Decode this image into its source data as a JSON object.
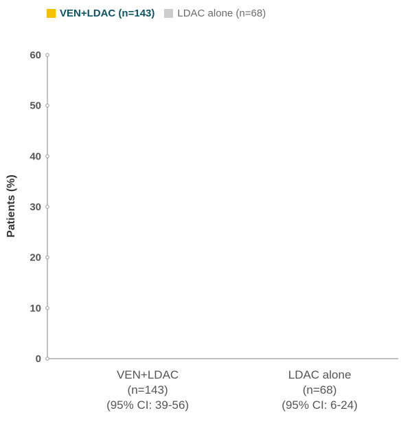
{
  "legend": [
    {
      "name": "VEN+LDAC (n=143)",
      "color": "#f5c000"
    },
    {
      "name": "LDAC alone (n=68)",
      "color": "#cccccc"
    }
  ],
  "chart_data": {
    "type": "bar",
    "ylabel": "Patients (%)",
    "ylim": [
      0,
      60
    ],
    "yticks": [
      0,
      10,
      20,
      30,
      40,
      50,
      60
    ],
    "categories": [
      [
        "VEN+LDAC",
        "(n=143)",
        "(95% CI: 39-56)"
      ],
      [
        "LDAC alone",
        "(n=68)",
        "(95% CI: 6-24)"
      ]
    ],
    "grid": false
  }
}
